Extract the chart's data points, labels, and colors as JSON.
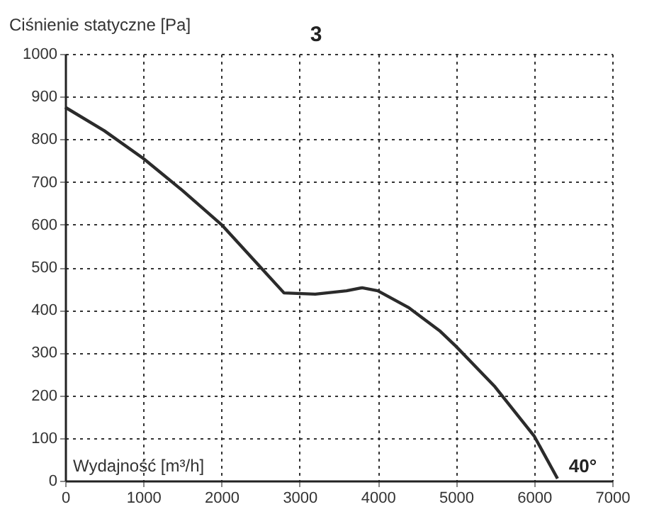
{
  "chart_data": {
    "type": "line",
    "xlabel": "Wydajność [m³/h]",
    "ylabel": "Ciśnienie statyczne [Pa]",
    "x": [
      0,
      500,
      1000,
      1500,
      2000,
      2500,
      2800,
      3200,
      3600,
      3800,
      4000,
      4400,
      4800,
      5000,
      5500,
      6000,
      6300
    ],
    "series": [
      {
        "color": "#2b2b2b",
        "values": [
          875,
          820,
          755,
          680,
          600,
          500,
          440,
          437,
          445,
          452,
          445,
          405,
          350,
          315,
          220,
          105,
          5
        ]
      }
    ],
    "xlim": [
      0,
      7000
    ],
    "xticks": [
      0,
      1000,
      2000,
      3000,
      4000,
      5000,
      6000,
      7000
    ],
    "ylim": [
      0,
      1000
    ],
    "yticks": [
      0,
      100,
      200,
      300,
      400,
      500,
      600,
      700,
      800,
      900,
      1000
    ],
    "grid": true,
    "marker": "none",
    "line_style": "solid",
    "annotations": [
      "3",
      {
        "text": "40°",
        "x": 6300,
        "y": 0
      }
    ]
  }
}
